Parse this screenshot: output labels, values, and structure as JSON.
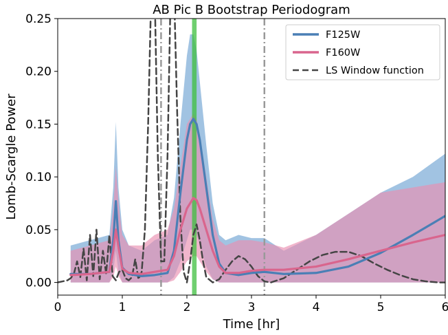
{
  "chart_data": {
    "type": "line",
    "title": "AB Pic B Bootstrap Periodogram",
    "xlabel": "Time [hr]",
    "ylabel": "Lomb-Scargle Power",
    "xlim": [
      0,
      6
    ],
    "ylim": [
      -0.012,
      0.25
    ],
    "xticks": [
      0,
      1,
      2,
      3,
      4,
      5,
      6
    ],
    "yticks": [
      0.0,
      0.05,
      0.1,
      0.15,
      0.2,
      0.25
    ],
    "ytick_labels": [
      "0.00",
      "0.05",
      "0.10",
      "0.15",
      "0.20",
      "0.25"
    ],
    "grid": false,
    "legend_position": "top-right",
    "series": [
      {
        "name": "F125W",
        "color": "#4a7fb5",
        "style": "solid",
        "x": [
          0.2,
          0.5,
          0.8,
          0.86,
          0.9,
          0.94,
          1.0,
          1.1,
          1.3,
          1.5,
          1.7,
          1.8,
          1.9,
          2.0,
          2.05,
          2.1,
          2.15,
          2.2,
          2.3,
          2.4,
          2.5,
          2.6,
          2.8,
          3.0,
          3.2,
          3.5,
          4.0,
          4.5,
          5.0,
          5.5,
          6.0
        ],
        "y": [
          0.008,
          0.008,
          0.01,
          0.04,
          0.077,
          0.04,
          0.014,
          0.008,
          0.006,
          0.007,
          0.009,
          0.03,
          0.085,
          0.135,
          0.15,
          0.155,
          0.15,
          0.135,
          0.09,
          0.045,
          0.018,
          0.009,
          0.007,
          0.009,
          0.01,
          0.008,
          0.009,
          0.015,
          0.028,
          0.045,
          0.063
        ]
      },
      {
        "name": "F160W",
        "color": "#d9658d",
        "style": "solid",
        "x": [
          0.2,
          0.5,
          0.8,
          0.86,
          0.9,
          0.95,
          1.0,
          1.1,
          1.3,
          1.5,
          1.7,
          1.8,
          1.9,
          2.0,
          2.1,
          2.15,
          2.2,
          2.3,
          2.4,
          2.5,
          2.6,
          2.8,
          3.0,
          3.2,
          3.5,
          4.0,
          4.5,
          5.0,
          5.5,
          6.0
        ],
        "y": [
          0.007,
          0.008,
          0.01,
          0.03,
          0.05,
          0.03,
          0.013,
          0.009,
          0.008,
          0.01,
          0.012,
          0.025,
          0.05,
          0.07,
          0.08,
          0.078,
          0.07,
          0.05,
          0.03,
          0.015,
          0.009,
          0.009,
          0.011,
          0.012,
          0.012,
          0.015,
          0.022,
          0.03,
          0.038,
          0.045
        ]
      },
      {
        "name": "LS Window function",
        "color": "#444444",
        "style": "dashed",
        "x": [
          0.0,
          0.15,
          0.2,
          0.25,
          0.3,
          0.35,
          0.4,
          0.45,
          0.5,
          0.55,
          0.6,
          0.65,
          0.7,
          0.75,
          0.8,
          0.85,
          0.9,
          0.95,
          1.0,
          1.05,
          1.1,
          1.15,
          1.2,
          1.25,
          1.3,
          1.35,
          1.4,
          1.45,
          1.5,
          1.55,
          1.6,
          1.65,
          1.7,
          1.75,
          1.8,
          1.85,
          1.9,
          1.95,
          2.0,
          2.05,
          2.1,
          2.15,
          2.2,
          2.25,
          2.3,
          2.4,
          2.5,
          2.6,
          2.7,
          2.8,
          2.9,
          3.0,
          3.1,
          3.2,
          3.3,
          3.5,
          3.7,
          3.9,
          4.1,
          4.3,
          4.5,
          4.7,
          4.9,
          5.1,
          5.3,
          5.5,
          5.7,
          5.9,
          6.0
        ],
        "y": [
          0.0,
          0.002,
          0.004,
          0.008,
          0.02,
          0.005,
          0.032,
          0.002,
          0.045,
          0.006,
          0.05,
          0.003,
          0.03,
          0.008,
          0.045,
          0.006,
          0.002,
          0.01,
          0.012,
          0.004,
          0.002,
          0.005,
          0.022,
          0.003,
          0.01,
          0.05,
          0.15,
          0.28,
          0.28,
          0.12,
          0.02,
          0.02,
          0.12,
          0.28,
          0.28,
          0.16,
          0.06,
          0.01,
          0.0,
          0.02,
          0.045,
          0.055,
          0.04,
          0.02,
          0.005,
          0.0,
          0.003,
          0.012,
          0.02,
          0.025,
          0.022,
          0.015,
          0.006,
          0.001,
          0.0,
          0.004,
          0.012,
          0.02,
          0.026,
          0.029,
          0.029,
          0.025,
          0.018,
          0.012,
          0.007,
          0.003,
          0.001,
          0.0,
          0.0
        ]
      }
    ],
    "bands": [
      {
        "series": "F125W",
        "color": "#6fa3d2",
        "x": [
          0.2,
          0.5,
          0.8,
          0.86,
          0.9,
          0.94,
          1.0,
          1.1,
          1.3,
          1.5,
          1.7,
          1.8,
          1.9,
          2.0,
          2.05,
          2.1,
          2.15,
          2.2,
          2.3,
          2.4,
          2.5,
          2.6,
          2.8,
          3.0,
          3.2,
          3.5,
          4.0,
          4.5,
          5.0,
          5.5,
          6.0
        ],
        "lower": [
          0.0,
          0.0,
          0.0,
          0.01,
          0.03,
          0.01,
          0.0,
          0.0,
          0.0,
          0.0,
          0.0,
          0.005,
          0.02,
          0.04,
          0.05,
          0.05,
          0.045,
          0.035,
          0.015,
          0.003,
          0.0,
          0.0,
          0.0,
          0.0,
          0.0,
          0.0,
          0.0,
          0.0,
          0.0,
          0.0,
          0.0
        ],
        "upper": [
          0.035,
          0.04,
          0.045,
          0.09,
          0.152,
          0.09,
          0.05,
          0.035,
          0.03,
          0.04,
          0.045,
          0.08,
          0.15,
          0.215,
          0.235,
          0.235,
          0.22,
          0.19,
          0.13,
          0.075,
          0.045,
          0.04,
          0.045,
          0.042,
          0.042,
          0.03,
          0.045,
          0.065,
          0.085,
          0.1,
          0.122
        ]
      },
      {
        "series": "F160W",
        "color": "#e98fb1",
        "x": [
          0.2,
          0.5,
          0.8,
          0.86,
          0.9,
          0.95,
          1.0,
          1.1,
          1.3,
          1.5,
          1.7,
          1.8,
          1.9,
          2.0,
          2.1,
          2.15,
          2.2,
          2.3,
          2.4,
          2.5,
          2.6,
          2.8,
          3.0,
          3.2,
          3.5,
          4.0,
          4.5,
          5.0,
          5.5,
          6.0
        ],
        "lower": [
          0.0,
          0.0,
          0.0,
          0.005,
          0.015,
          0.005,
          0.0,
          0.0,
          0.0,
          0.0,
          0.0,
          0.002,
          0.01,
          0.02,
          0.025,
          0.025,
          0.02,
          0.01,
          0.003,
          0.0,
          0.0,
          0.0,
          0.0,
          0.0,
          0.0,
          0.0,
          0.0,
          0.0,
          0.0,
          0.0
        ],
        "upper": [
          0.03,
          0.035,
          0.04,
          0.07,
          0.11,
          0.07,
          0.045,
          0.035,
          0.035,
          0.045,
          0.05,
          0.07,
          0.11,
          0.15,
          0.16,
          0.155,
          0.14,
          0.1,
          0.06,
          0.04,
          0.035,
          0.04,
          0.04,
          0.038,
          0.033,
          0.045,
          0.065,
          0.085,
          0.09,
          0.095
        ]
      }
    ],
    "vertical_lines": [
      {
        "x": 1.6,
        "color": "#999999",
        "style": "dashdot"
      },
      {
        "x": 3.2,
        "color": "#999999",
        "style": "dashdot"
      }
    ],
    "vertical_spans": [
      {
        "x0": 2.08,
        "x1": 2.15,
        "color": "#3fbf3f"
      }
    ]
  }
}
